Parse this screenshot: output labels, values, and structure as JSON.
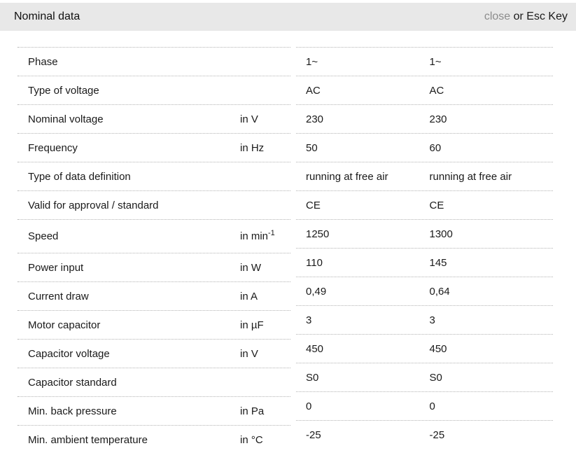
{
  "header": {
    "title": "Nominal data",
    "close_label": "close",
    "close_suffix": " or Esc Key"
  },
  "colors": {
    "header_bg": "#e8e8e8",
    "close_gray": "#8c8c8c",
    "text": "#1a1a1a",
    "divider": "#b3b3b3"
  },
  "table": {
    "rows": [
      {
        "label": "Phase",
        "unit": "",
        "values": [
          "1~",
          "1~"
        ]
      },
      {
        "label": "Type of voltage",
        "unit": "",
        "values": [
          "AC",
          "AC"
        ]
      },
      {
        "label": "Nominal voltage",
        "unit": "in V",
        "values": [
          "230",
          "230"
        ]
      },
      {
        "label": "Frequency",
        "unit": "in Hz",
        "values": [
          "50",
          "60"
        ]
      },
      {
        "label": "Type of data definition",
        "unit": "",
        "values": [
          "running at free air",
          "running at free air"
        ]
      },
      {
        "label": "Valid for approval / standard",
        "unit": "",
        "values": [
          "CE",
          "CE"
        ]
      },
      {
        "label": "Speed",
        "unit": "in min",
        "unit_sup": "-1",
        "values": [
          "1250",
          "1300"
        ]
      },
      {
        "label": "Power input",
        "unit": "in W",
        "values": [
          "110",
          "145"
        ]
      },
      {
        "label": "Current draw",
        "unit": "in A",
        "values": [
          "0,49",
          "0,64"
        ]
      },
      {
        "label": "Motor capacitor",
        "unit": "in µF",
        "values": [
          "3",
          "3"
        ]
      },
      {
        "label": "Capacitor voltage",
        "unit": "in V",
        "values": [
          "450",
          "450"
        ]
      },
      {
        "label": "Capacitor standard",
        "unit": "",
        "values": [
          "S0",
          "S0"
        ]
      },
      {
        "label": "Min. back pressure",
        "unit": "in Pa",
        "values": [
          "0",
          "0"
        ]
      },
      {
        "label": "Min. ambient temperature",
        "unit": "in °C",
        "values": [
          "-25",
          "-25"
        ]
      }
    ]
  }
}
